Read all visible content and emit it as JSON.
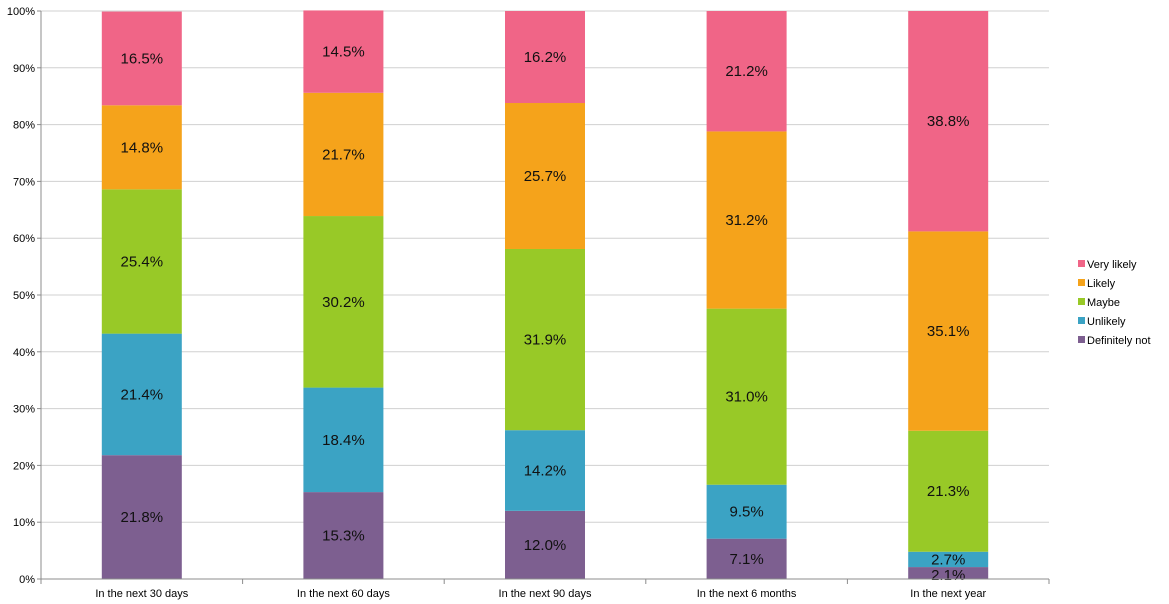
{
  "chart_data": {
    "type": "bar",
    "stacked": true,
    "percent_stacked": true,
    "categories": [
      "In the next 30 days",
      "In the next 60 days",
      "In the next 90 days",
      "In the next 6 months",
      "In the next year"
    ],
    "series": [
      {
        "name": "Definitely not",
        "color": "#7d5f90",
        "values": [
          21.8,
          15.3,
          12.0,
          7.1,
          2.1
        ],
        "labels": [
          "21.8%",
          "15.3%",
          "12.0%",
          "7.1%",
          "2.1%"
        ]
      },
      {
        "name": "Unlikely",
        "color": "#3ba3c4",
        "values": [
          21.4,
          18.4,
          14.2,
          9.5,
          2.7
        ],
        "labels": [
          "21.4%",
          "18.4%",
          "14.2%",
          "9.5%",
          "2.7%"
        ]
      },
      {
        "name": "Maybe",
        "color": "#98c927",
        "values": [
          25.4,
          30.2,
          31.9,
          31.0,
          21.3
        ],
        "labels": [
          "25.4%",
          "30.2%",
          "31.9%",
          "31.0%",
          "21.3%"
        ]
      },
      {
        "name": "Likely",
        "color": "#f5a31b",
        "values": [
          14.8,
          21.7,
          25.7,
          31.2,
          35.1
        ],
        "labels": [
          "14.8%",
          "21.7%",
          "25.7%",
          "31.2%",
          "35.1%"
        ]
      },
      {
        "name": "Very likely",
        "color": "#f06587",
        "values": [
          16.5,
          14.5,
          16.2,
          21.2,
          38.8
        ],
        "labels": [
          "16.5%",
          "14.5%",
          "16.2%",
          "21.2%",
          "38.8%"
        ]
      }
    ],
    "yticks": [
      "0%",
      "10%",
      "20%",
      "30%",
      "40%",
      "50%",
      "60%",
      "70%",
      "80%",
      "90%",
      "100%"
    ],
    "ylim": [
      0,
      100
    ],
    "grid": true,
    "legend_position": "right",
    "legend_order": [
      "Very likely",
      "Likely",
      "Maybe",
      "Unlikely",
      "Definitely not"
    ]
  }
}
